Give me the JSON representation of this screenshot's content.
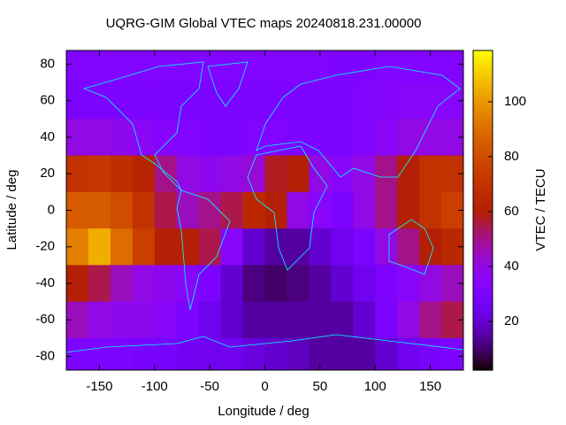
{
  "chart_data": {
    "type": "heatmap",
    "title": "UQRG-GIM Global VTEC maps 20240818.231.00000",
    "x_label": "Longitude / deg",
    "y_label": "Latitude / deg",
    "colorbar_label": "VTEC / TECU",
    "x": [
      -170,
      -150,
      -130,
      -110,
      -90,
      -70,
      -50,
      -30,
      -10,
      10,
      30,
      50,
      70,
      90,
      110,
      130,
      150,
      170
    ],
    "y": [
      80,
      60,
      40,
      20,
      0,
      -20,
      -40,
      -60,
      -80
    ],
    "values": [
      [
        32,
        32,
        32,
        32,
        32,
        32,
        32,
        32,
        32,
        32,
        32,
        32,
        30,
        30,
        32,
        32,
        32,
        32
      ],
      [
        30,
        30,
        30,
        30,
        30,
        30,
        30,
        30,
        30,
        30,
        30,
        30,
        30,
        32,
        34,
        35,
        35,
        35
      ],
      [
        40,
        40,
        38,
        36,
        34,
        32,
        30,
        30,
        32,
        32,
        30,
        30,
        30,
        32,
        36,
        40,
        40,
        40
      ],
      [
        70,
        72,
        68,
        62,
        50,
        40,
        38,
        40,
        42,
        58,
        60,
        40,
        35,
        40,
        50,
        60,
        70,
        70
      ],
      [
        85,
        85,
        80,
        70,
        55,
        45,
        50,
        55,
        65,
        60,
        40,
        35,
        30,
        40,
        50,
        60,
        70,
        75
      ],
      [
        95,
        105,
        90,
        75,
        60,
        60,
        55,
        35,
        20,
        15,
        15,
        20,
        25,
        30,
        40,
        50,
        60,
        65
      ],
      [
        60,
        55,
        45,
        40,
        38,
        35,
        30,
        20,
        12,
        10,
        12,
        15,
        20,
        25,
        30,
        35,
        40,
        45
      ],
      [
        45,
        40,
        38,
        38,
        35,
        30,
        25,
        20,
        15,
        15,
        15,
        15,
        15,
        20,
        30,
        40,
        50,
        55
      ],
      [
        30,
        30,
        30,
        28,
        28,
        26,
        25,
        25,
        22,
        20,
        18,
        15,
        15,
        15,
        20,
        25,
        28,
        30
      ]
    ],
    "cell": [
      20,
      20
    ],
    "xlim": [
      -180,
      180
    ],
    "ylim": [
      -87.5,
      87.5
    ],
    "xticks": [
      -150,
      -100,
      -50,
      0,
      50,
      100,
      150
    ],
    "yticks": [
      -80,
      -60,
      -40,
      -20,
      0,
      20,
      40,
      60,
      80
    ],
    "zlim": [
      2.3,
      118.7
    ],
    "zticks": [
      20,
      40,
      60,
      80,
      100
    ],
    "colormap": "gnuplot"
  }
}
